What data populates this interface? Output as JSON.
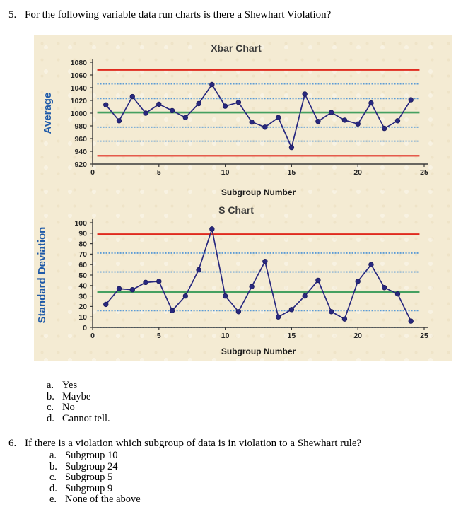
{
  "questions": {
    "q5": {
      "number": "5.",
      "text": "For the following variable data run charts is there a Shewhart Violation?",
      "options": [
        {
          "letter": "a.",
          "label": "Yes"
        },
        {
          "letter": "b.",
          "label": "Maybe"
        },
        {
          "letter": "c.",
          "label": "No"
        },
        {
          "letter": "d.",
          "label": "Cannot tell."
        }
      ]
    },
    "q6": {
      "number": "6.",
      "text": "If there is a violation which subgroup of data is in violation to a Shewhart rule?",
      "options": [
        {
          "letter": "a.",
          "label": "Subgroup 10"
        },
        {
          "letter": "b.",
          "label": "Subgroup 24"
        },
        {
          "letter": "c.",
          "label": "Subgroup 5"
        },
        {
          "letter": "d.",
          "label": "Subgroup 9"
        },
        {
          "letter": "e.",
          "label": "None of the above"
        }
      ]
    }
  },
  "figure": {
    "background": "#f4ebd3"
  },
  "chart_data": [
    {
      "type": "line",
      "title": "Xbar Chart",
      "xlabel": "Subgroup Number",
      "ylabel": "Average",
      "xlim": [
        0,
        25
      ],
      "ylim": [
        920,
        1080
      ],
      "ytick_step": 20,
      "xticks": [
        0,
        5,
        10,
        15,
        20,
        25
      ],
      "x": [
        1,
        2,
        3,
        4,
        5,
        6,
        7,
        8,
        9,
        10,
        11,
        12,
        13,
        14,
        15,
        16,
        17,
        18,
        19,
        20,
        21,
        22,
        23,
        24
      ],
      "values": [
        1013,
        988,
        1026,
        1000,
        1014,
        1004,
        993,
        1015,
        1045,
        1011,
        1017,
        986,
        978,
        993,
        946,
        1030,
        987,
        1001,
        989,
        983,
        1016,
        976,
        988,
        1021
      ],
      "series_color": "#28287f",
      "reference_lines": [
        {
          "name": "ucl",
          "value": 1068,
          "style": "solid",
          "color": "#e02a1e"
        },
        {
          "name": "upper-2sigma",
          "value": 1046,
          "style": "dashed",
          "color": "#5b9bd5"
        },
        {
          "name": "upper-1sigma",
          "value": 1023,
          "style": "dashed",
          "color": "#5b9bd5"
        },
        {
          "name": "center-line",
          "value": 1001,
          "style": "solid",
          "color": "#45a060"
        },
        {
          "name": "lower-1sigma",
          "value": 978,
          "style": "dashed",
          "color": "#5b9bd5"
        },
        {
          "name": "lower-2sigma",
          "value": 956,
          "style": "dashed",
          "color": "#5b9bd5"
        },
        {
          "name": "lcl",
          "value": 933,
          "style": "solid",
          "color": "#e02a1e"
        }
      ]
    },
    {
      "type": "line",
      "title": "S Chart",
      "xlabel": "Subgroup Number",
      "ylabel": "Standard Deviation",
      "xlim": [
        0,
        25
      ],
      "ylim": [
        0,
        100
      ],
      "ytick_step": 10,
      "xticks": [
        0,
        5,
        10,
        15,
        20,
        25
      ],
      "x": [
        1,
        2,
        3,
        4,
        5,
        6,
        7,
        8,
        9,
        10,
        11,
        12,
        13,
        14,
        15,
        16,
        17,
        18,
        19,
        20,
        21,
        22,
        23,
        24
      ],
      "values": [
        22,
        37,
        36,
        43,
        44,
        16,
        30,
        55,
        94,
        30,
        15,
        39,
        63,
        10,
        17,
        30,
        45,
        15,
        8,
        44,
        60,
        38,
        32,
        6
      ],
      "series_color": "#28287f",
      "reference_lines": [
        {
          "name": "ucl",
          "value": 89,
          "style": "solid",
          "color": "#e02a1e"
        },
        {
          "name": "upper-2sigma",
          "value": 71,
          "style": "dashed",
          "color": "#5b9bd5"
        },
        {
          "name": "upper-1sigma",
          "value": 53,
          "style": "dashed",
          "color": "#5b9bd5"
        },
        {
          "name": "center-line",
          "value": 34,
          "style": "solid",
          "color": "#45a060"
        },
        {
          "name": "lower-1sigma",
          "value": 16,
          "style": "dashed",
          "color": "#5b9bd5"
        },
        {
          "name": "lower-2sigma",
          "value": 0,
          "style": "dashed",
          "color": "#5b9bd5"
        }
      ]
    }
  ]
}
